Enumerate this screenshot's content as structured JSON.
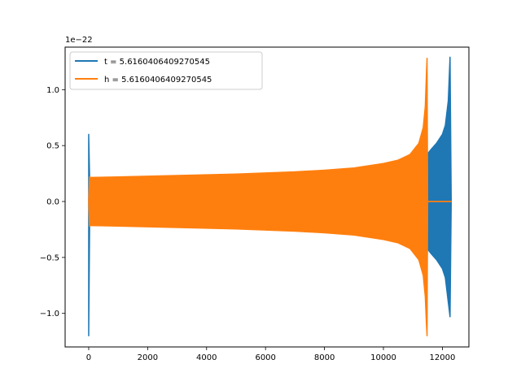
{
  "chart_data": {
    "type": "line",
    "title": "",
    "xlabel": "",
    "ylabel": "",
    "y_offset_label": "1e−22",
    "xlim": [
      -800,
      12900
    ],
    "ylim": [
      -1.3,
      1.38
    ],
    "y_scale_exponent": -22,
    "grid": false,
    "legend": "upper-left",
    "x_ticks": [
      {
        "value": 0,
        "label": "0"
      },
      {
        "value": 2000,
        "label": "2000"
      },
      {
        "value": 4000,
        "label": "4000"
      },
      {
        "value": 6000,
        "label": "6000"
      },
      {
        "value": 8000,
        "label": "8000"
      },
      {
        "value": 10000,
        "label": "10000"
      },
      {
        "value": 12000,
        "label": "12000"
      }
    ],
    "y_ticks": [
      {
        "value": -1.0,
        "label": "−1.0"
      },
      {
        "value": -0.5,
        "label": "−0.5"
      },
      {
        "value": 0.0,
        "label": "0.0"
      },
      {
        "value": 0.5,
        "label": "0.5"
      },
      {
        "value": 1.0,
        "label": "1.0"
      }
    ],
    "series": [
      {
        "name": "t = 5.6160406409270545",
        "color": "#1f77b4",
        "x": [
          0,
          30,
          60,
          100,
          1000,
          3000,
          5000,
          7000,
          9000,
          10000,
          10800,
          11200,
          11480,
          11600,
          11800,
          12000,
          12100,
          12200,
          12260,
          12300
        ],
        "upper": [
          0.6,
          0.22,
          0.21,
          0.21,
          0.215,
          0.225,
          0.24,
          0.255,
          0.28,
          0.31,
          0.36,
          0.4,
          0.42,
          0.46,
          0.52,
          0.6,
          0.68,
          0.9,
          1.29,
          0.0
        ],
        "lower": [
          -1.2,
          -0.22,
          -0.21,
          -0.21,
          -0.215,
          -0.225,
          -0.24,
          -0.255,
          -0.28,
          -0.31,
          -0.36,
          -0.4,
          -0.42,
          -0.46,
          -0.52,
          -0.6,
          -0.68,
          -0.9,
          -1.03,
          0.0
        ]
      },
      {
        "name": "h = 5.6160406409270545",
        "color": "#ff7f0e",
        "x": [
          0,
          30,
          60,
          100,
          1000,
          3000,
          5000,
          7000,
          8000,
          9000,
          10000,
          10500,
          10900,
          11200,
          11350,
          11420,
          11460,
          11480,
          11500,
          12300
        ],
        "upper": [
          0.0,
          0.22,
          0.215,
          0.215,
          0.22,
          0.232,
          0.245,
          0.265,
          0.28,
          0.3,
          0.34,
          0.37,
          0.42,
          0.52,
          0.66,
          0.85,
          1.15,
          1.28,
          0.0,
          0.0
        ],
        "lower": [
          0.0,
          -0.22,
          -0.215,
          -0.215,
          -0.22,
          -0.232,
          -0.245,
          -0.265,
          -0.28,
          -0.3,
          -0.34,
          -0.37,
          -0.42,
          -0.52,
          -0.66,
          -0.85,
          -1.1,
          -1.2,
          0.0,
          0.0
        ]
      }
    ]
  }
}
